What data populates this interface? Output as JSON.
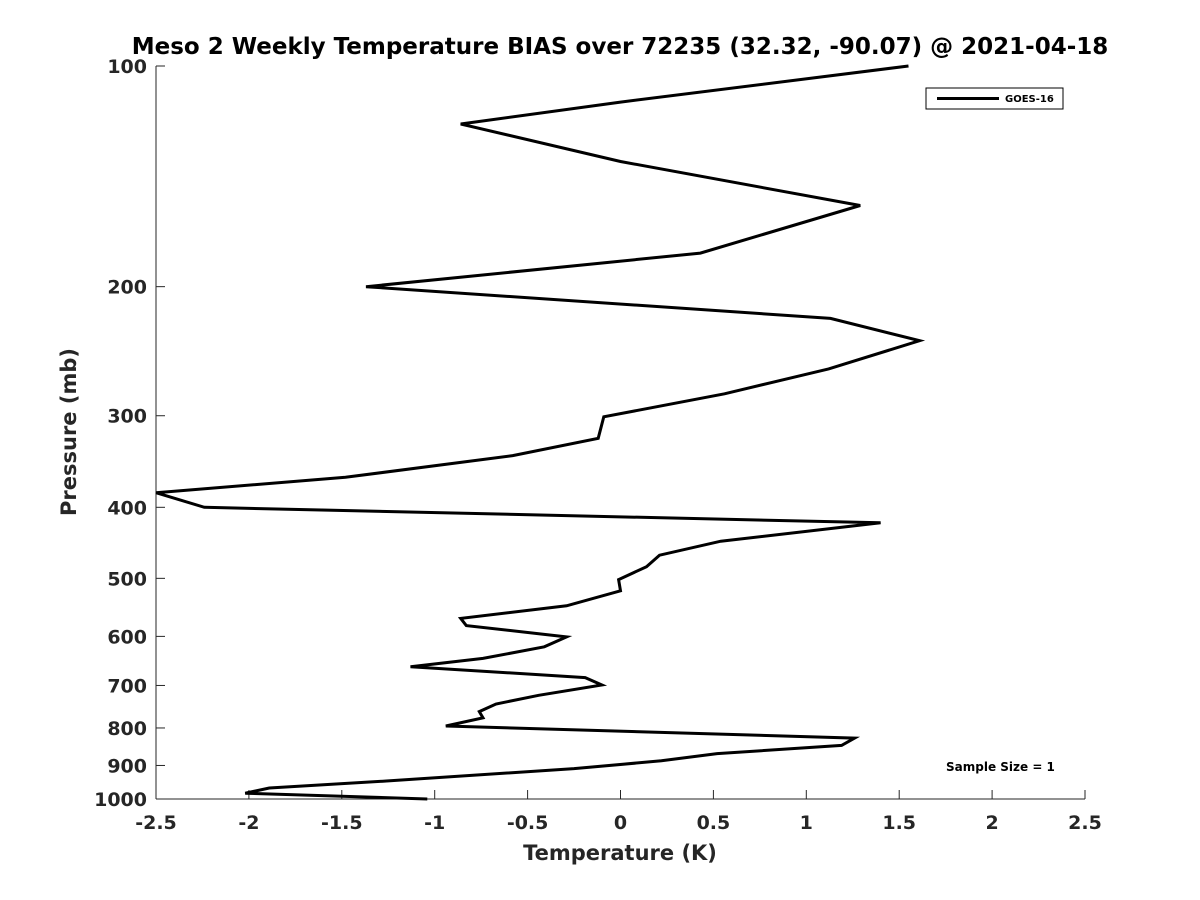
{
  "chart_data": {
    "type": "line",
    "title": "Meso 2 Weekly Temperature BIAS over 72235 (32.32, -90.07) @ 2021-04-18",
    "xlabel": "Temperature (K)",
    "ylabel": "Pressure (mb)",
    "xlim": [
      -2.5,
      2.5
    ],
    "ylim": [
      100,
      1000
    ],
    "yscale": "log",
    "yreversed": true,
    "xticks": [
      -2.5,
      -2,
      -1.5,
      -1,
      -0.5,
      0,
      0.5,
      1,
      1.5,
      2,
      2.5
    ],
    "xtick_labels": [
      "-2.5",
      "-2",
      "-1.5",
      "-1",
      "-0.5",
      "0",
      "0.5",
      "1",
      "1.5",
      "2",
      "2.5"
    ],
    "yticks": [
      100,
      200,
      300,
      400,
      500,
      600,
      700,
      800,
      900,
      1000
    ],
    "ytick_labels": [
      "100",
      "200",
      "300",
      "400",
      "500",
      "600",
      "700",
      "800",
      "900",
      "1000"
    ],
    "grid": false,
    "legend_position": "top-right",
    "series": [
      {
        "name": "GOES-16",
        "color": "#000000",
        "points": [
          [
            1.55,
            100
          ],
          [
            0.0,
            112
          ],
          [
            -0.86,
            120
          ],
          [
            0.0,
            135
          ],
          [
            1.29,
            155
          ],
          [
            0.43,
            180
          ],
          [
            -1.37,
            200
          ],
          [
            1.13,
            221
          ],
          [
            1.61,
            237
          ],
          [
            1.12,
            259
          ],
          [
            0.56,
            280
          ],
          [
            -0.09,
            301
          ],
          [
            -0.12,
            322
          ],
          [
            -0.58,
            340
          ],
          [
            -1.48,
            364
          ],
          [
            -2.5,
            382
          ],
          [
            -2.24,
            400
          ],
          [
            1.4,
            420
          ],
          [
            0.54,
            445
          ],
          [
            0.21,
            465
          ],
          [
            0.14,
            482
          ],
          [
            -0.01,
            502
          ],
          [
            0.0,
            520
          ],
          [
            -0.29,
            545
          ],
          [
            -0.86,
            567
          ],
          [
            -0.83,
            580
          ],
          [
            -0.29,
            601
          ],
          [
            -0.41,
            620
          ],
          [
            -0.74,
            643
          ],
          [
            -1.13,
            660
          ],
          [
            -0.19,
            683
          ],
          [
            -0.1,
            699
          ],
          [
            -0.44,
            722
          ],
          [
            -0.67,
            742
          ],
          [
            -0.76,
            760
          ],
          [
            -0.74,
            775
          ],
          [
            -0.94,
            795
          ],
          [
            1.26,
            826
          ],
          [
            1.19,
            845
          ],
          [
            0.52,
            867
          ],
          [
            0.22,
            887
          ],
          [
            -0.25,
            909
          ],
          [
            -1.26,
            945
          ],
          [
            -1.89,
            966
          ],
          [
            -2.02,
            982
          ],
          [
            -1.04,
            1000
          ]
        ]
      }
    ],
    "annotation": "Sample Size = 1"
  }
}
